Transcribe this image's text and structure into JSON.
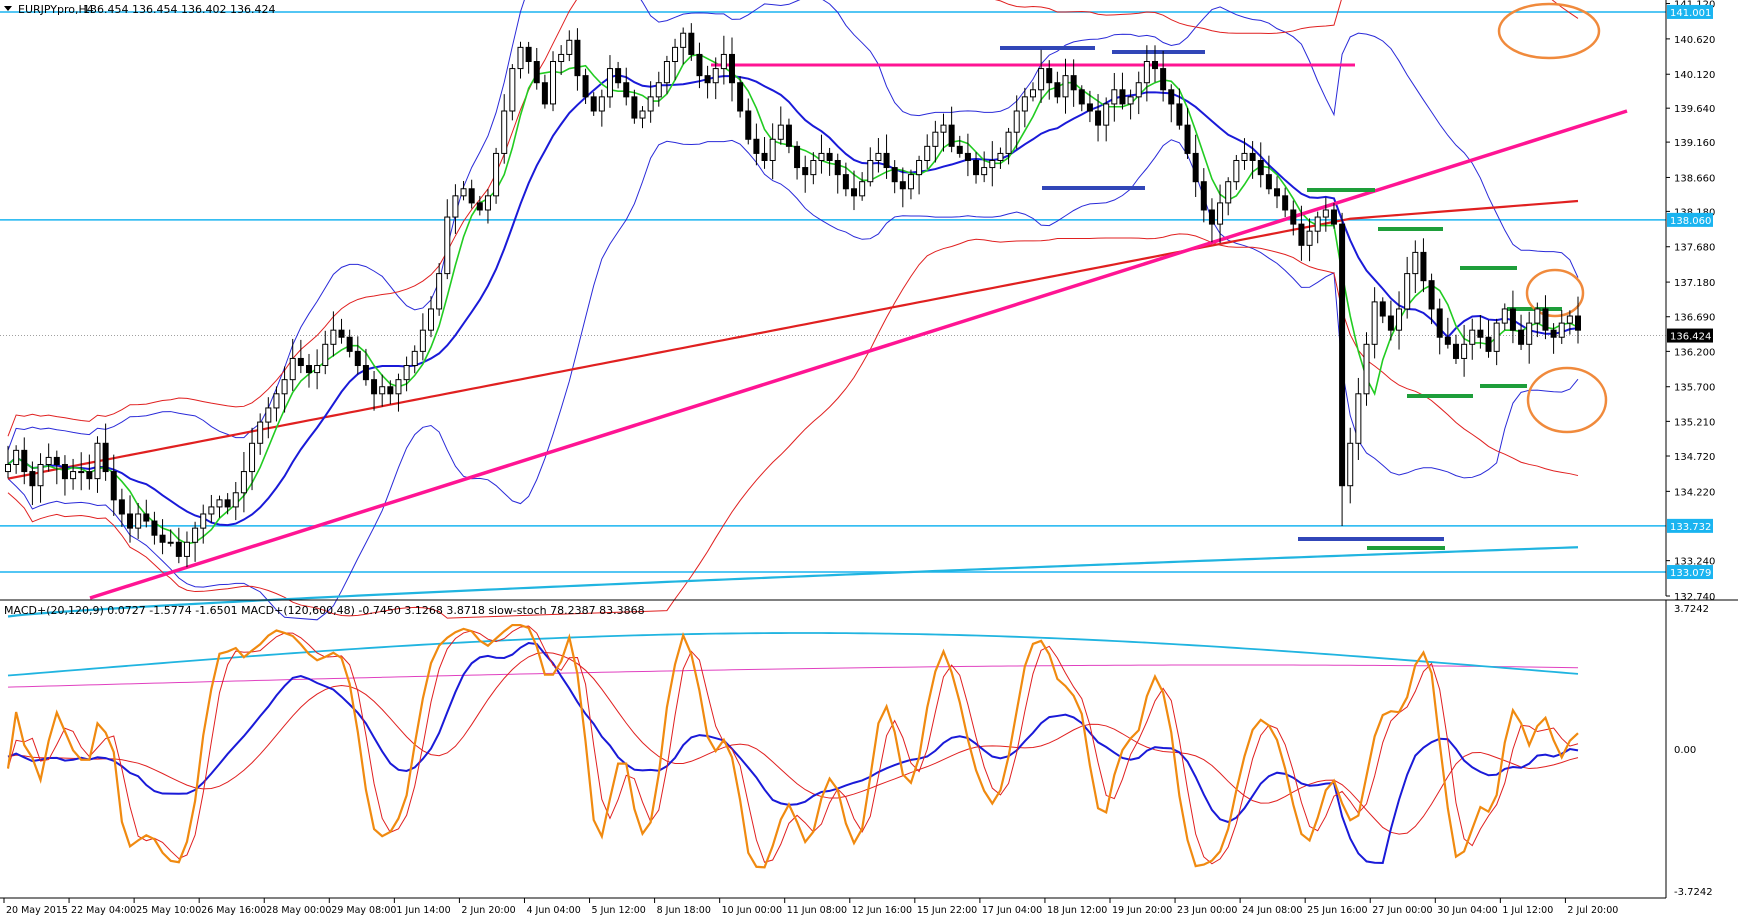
{
  "chart_data": [
    {
      "type": "candlestick",
      "title": "EURJPYpro,H4",
      "header": {
        "symbol": "EURJPYpro,H4",
        "ohlc": [
          "136.454",
          "136.454",
          "136.402",
          "136.424"
        ]
      },
      "ylim": [
        132.74,
        141.17
      ],
      "y_ticks": [
        "141.120",
        "140.620",
        "140.120",
        "139.640",
        "139.160",
        "138.660",
        "138.180",
        "137.680",
        "137.180",
        "136.690",
        "136.200",
        "135.700",
        "135.210",
        "134.720",
        "134.220",
        "133.240",
        "132.740"
      ],
      "highlighted_levels": [
        {
          "label": "141.001",
          "value": 141.001,
          "color": "#1ab4f0"
        },
        {
          "label": "138.060",
          "value": 138.06,
          "color": "#1ab4f0"
        },
        {
          "label": "136.424",
          "value": 136.424,
          "color": "#000000"
        },
        {
          "label": "133.732",
          "value": 133.732,
          "color": "#1ab4f0"
        },
        {
          "label": "133.079",
          "value": 133.079,
          "color": "#1ab4f0"
        }
      ],
      "closes": [
        134.6,
        134.8,
        134.5,
        134.3,
        134.6,
        134.7,
        134.6,
        134.4,
        134.5,
        134.5,
        134.4,
        134.9,
        134.5,
        134.1,
        133.9,
        133.7,
        133.9,
        133.8,
        133.6,
        133.5,
        133.5,
        133.3,
        133.5,
        133.7,
        133.9,
        134.0,
        134.1,
        134.0,
        134.2,
        134.5,
        134.9,
        135.2,
        135.4,
        135.6,
        135.8,
        136.1,
        136.0,
        135.9,
        136.0,
        136.3,
        136.5,
        136.4,
        136.2,
        136.0,
        135.8,
        135.6,
        135.7,
        135.6,
        135.8,
        136.0,
        136.2,
        136.5,
        136.8,
        137.3,
        138.1,
        138.4,
        138.5,
        138.3,
        138.2,
        138.4,
        139.0,
        139.6,
        140.2,
        140.5,
        140.3,
        140.0,
        139.7,
        140.3,
        140.4,
        140.6,
        140.1,
        139.8,
        139.6,
        139.8,
        140.2,
        140.0,
        139.8,
        139.5,
        139.6,
        139.8,
        140.0,
        140.3,
        140.5,
        140.7,
        140.4,
        140.1,
        140.0,
        140.2,
        140.4,
        140.0,
        139.6,
        139.2,
        139.0,
        138.9,
        139.2,
        139.4,
        139.1,
        138.8,
        138.7,
        138.9,
        139.0,
        138.9,
        138.7,
        138.5,
        138.4,
        138.6,
        138.9,
        139.0,
        138.8,
        138.6,
        138.5,
        138.7,
        138.9,
        139.1,
        139.3,
        139.4,
        139.1,
        139.0,
        138.9,
        138.7,
        138.8,
        138.9,
        139.0,
        139.3,
        139.6,
        139.8,
        139.9,
        140.2,
        140.0,
        139.8,
        140.1,
        139.9,
        139.7,
        139.6,
        139.4,
        139.7,
        139.9,
        139.7,
        139.8,
        140.0,
        140.3,
        140.2,
        139.9,
        139.7,
        139.4,
        139.0,
        138.6,
        138.2,
        138.0,
        138.3,
        138.6,
        138.9,
        139.0,
        138.9,
        138.7,
        138.5,
        138.4,
        138.2,
        138.0,
        137.7,
        137.9,
        138.1,
        138.2,
        138.0,
        134.3,
        134.9,
        135.6,
        136.3,
        136.9,
        136.7,
        136.5,
        136.8,
        137.3,
        137.6,
        137.2,
        136.8,
        136.4,
        136.3,
        136.1,
        136.3,
        136.5,
        136.4,
        136.2,
        136.6,
        136.8,
        136.5,
        136.3,
        136.6,
        136.8,
        136.5,
        136.4,
        136.6,
        136.7,
        136.5
      ]
    },
    {
      "type": "line",
      "header": {
        "macd_fast": {
          "label": "MACD+(20,120,9)",
          "values": [
            "0.0727",
            "-1.5774",
            "-1.6501"
          ]
        },
        "macd_slow": {
          "label": "MACD+(120,600,48)",
          "values": [
            "-0.7450",
            "3.1268",
            "3.8718"
          ]
        },
        "stoch": {
          "label": "slow-stoch",
          "values": [
            "78.2387",
            "83.3868"
          ]
        }
      },
      "ylim": [
        -3.7242,
        3.7242
      ],
      "y_ticks": [
        "3.7242",
        "0.00",
        "-3.7242"
      ],
      "x_ticks": [
        "20 May 2015",
        "22 May 04:00",
        "25 May 10:00",
        "26 May 16:00",
        "28 May 00:00",
        "29 May 08:00",
        "1 Jun 14:00",
        "2 Jun 20:00",
        "4 Jun 04:00",
        "5 Jun 12:00",
        "8 Jun 18:00",
        "10 Jun 00:00",
        "11 Jun 08:00",
        "12 Jun 16:00",
        "15 Jun 22:00",
        "17 Jun 04:00",
        "18 Jun 12:00",
        "19 Jun 20:00",
        "23 Jun 00:00",
        "24 Jun 08:00",
        "25 Jun 16:00",
        "27 Jun 00:00",
        "30 Jun 04:00",
        "1 Jul 12:00",
        "2 Jul 20:00"
      ],
      "colors": {
        "macd_fast": "#1a1ad8",
        "macd_fast_signal": "#e02020",
        "macd_slow": "#20b4e0",
        "macd_slow_signal": "#e040c0",
        "stoch_main": "#f08a10",
        "stoch_signal": "#e02020"
      }
    }
  ]
}
